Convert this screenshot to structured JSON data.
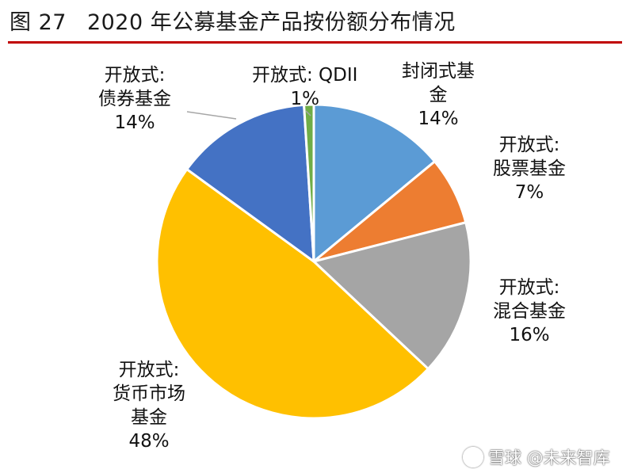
{
  "title": {
    "figure_no": "图 27",
    "text": "2020 年公募基金产品按份额分布情况"
  },
  "chart_data": {
    "type": "pie",
    "start_angle_deg": 0,
    "direction": "clockwise",
    "slices": [
      {
        "name_lines": [
          "封闭式基",
          "金"
        ],
        "percent_label": "14%",
        "value": 14,
        "color": "#5b9bd5"
      },
      {
        "name_lines": [
          "开放式:",
          "股票基金"
        ],
        "percent_label": "7%",
        "value": 7,
        "color": "#ed7d31"
      },
      {
        "name_lines": [
          "开放式:",
          "混合基金"
        ],
        "percent_label": "16%",
        "value": 16,
        "color": "#a5a5a5"
      },
      {
        "name_lines": [
          "开放式:",
          "货币市场",
          "基金"
        ],
        "percent_label": "48%",
        "value": 48,
        "color": "#ffc000"
      },
      {
        "name_lines": [
          "开放式:",
          "债券基金"
        ],
        "percent_label": "14%",
        "value": 14,
        "color": "#4472c4"
      },
      {
        "name_lines": [
          "开放式: QDII"
        ],
        "percent_label": "1%",
        "value": 1,
        "color": "#70ad47"
      }
    ]
  },
  "watermark": {
    "text": "雪球 @未来智库"
  }
}
